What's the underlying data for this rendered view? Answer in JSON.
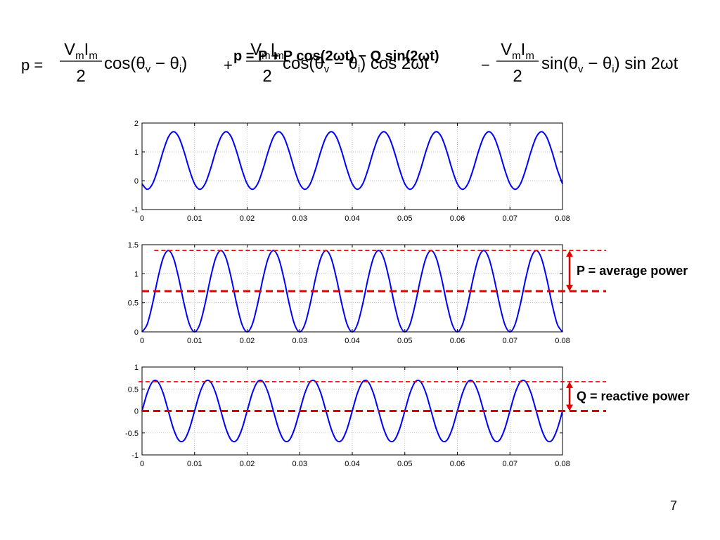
{
  "formula": {
    "lhs": "p =",
    "terms": [
      {
        "numerator": [
          [
            "V",
            "m"
          ],
          [
            "I",
            "m"
          ]
        ],
        "denominator": "2",
        "expression": [
          {
            "t": "cos(θ",
            "sub": "v"
          },
          {
            "t": " − θ",
            "sub": "i"
          },
          {
            "t": ")"
          }
        ]
      },
      {
        "sign": "+",
        "numerator": [
          [
            "V",
            "m"
          ],
          [
            "I",
            "m"
          ]
        ],
        "denominator": "2",
        "expression": [
          {
            "t": "cos(θ",
            "sub": "v"
          },
          {
            "t": " − θ",
            "sub": "i"
          },
          {
            "t": ") cos 2ωt"
          }
        ]
      },
      {
        "sign": "−",
        "numerator": [
          [
            "V",
            "m"
          ],
          [
            "I",
            "m"
          ]
        ],
        "denominator": "2",
        "expression": [
          {
            "t": "sin(θ",
            "sub": "v"
          },
          {
            "t": " − θ",
            "sub": "i"
          },
          {
            "t": ") sin 2ωt"
          }
        ]
      }
    ],
    "overlay": "p = P + P cos(2ωt) − Q sin(2ωt)"
  },
  "page_number": "7",
  "chart_data": [
    {
      "type": "line",
      "grid": true,
      "x": [
        0,
        0.001,
        0.002,
        0.003,
        0.004,
        0.005,
        0.006,
        0.007,
        0.008,
        0.009,
        0.01,
        0.011,
        0.012,
        0.013,
        0.014,
        0.015,
        0.016,
        0.017,
        0.018,
        0.019,
        0.02,
        0.021,
        0.022,
        0.023,
        0.024,
        0.025,
        0.026,
        0.027,
        0.028,
        0.029,
        0.03,
        0.031,
        0.032,
        0.033,
        0.034,
        0.035,
        0.036,
        0.037,
        0.038,
        0.039,
        0.04,
        0.041,
        0.042,
        0.043,
        0.044,
        0.045,
        0.046,
        0.047,
        0.048,
        0.049,
        0.05,
        0.051,
        0.052,
        0.053,
        0.054,
        0.055,
        0.056,
        0.057,
        0.058,
        0.059,
        0.06,
        0.061,
        0.062,
        0.063,
        0.064,
        0.065,
        0.066,
        0.067,
        0.068,
        0.069,
        0.07,
        0.071,
        0.072,
        0.073,
        0.074,
        0.075,
        0.076,
        0.077,
        0.078,
        0.079,
        0.08
      ],
      "series": [
        {
          "color": "#0000ff",
          "values": [
            -0.109,
            -0.3,
            -0.109,
            0.391,
            1.009,
            1.509,
            1.7,
            1.509,
            1.009,
            0.391,
            -0.109,
            -0.3,
            -0.109,
            0.391,
            1.009,
            1.509,
            1.7,
            1.509,
            1.009,
            0.391,
            -0.109,
            -0.3,
            -0.109,
            0.391,
            1.009,
            1.509,
            1.7,
            1.509,
            1.009,
            0.391,
            -0.109,
            -0.3,
            -0.109,
            0.391,
            1.009,
            1.509,
            1.7,
            1.509,
            1.009,
            0.391,
            -0.109,
            -0.3,
            -0.109,
            0.391,
            1.009,
            1.509,
            1.7,
            1.509,
            1.009,
            0.391,
            -0.109,
            -0.3,
            -0.109,
            0.391,
            1.009,
            1.509,
            1.7,
            1.509,
            1.009,
            0.391,
            -0.109,
            -0.3,
            -0.109,
            0.391,
            1.009,
            1.509,
            1.7,
            1.509,
            1.009,
            0.391,
            -0.109,
            -0.3,
            -0.109,
            0.391,
            1.009,
            1.509,
            1.7,
            1.509,
            1.009,
            0.391,
            -0.109
          ]
        }
      ],
      "xlim": [
        0,
        0.08
      ],
      "xticks": [
        0,
        0.01,
        0.02,
        0.03,
        0.04,
        0.05,
        0.06,
        0.07,
        0.08
      ],
      "ylim": [
        -1,
        2
      ],
      "yticks": [
        -1,
        0,
        1,
        2
      ]
    },
    {
      "type": "line",
      "grid": true,
      "x": [
        0,
        0.001,
        0.002,
        0.003,
        0.004,
        0.005,
        0.006,
        0.007,
        0.008,
        0.009,
        0.01,
        0.011,
        0.012,
        0.013,
        0.014,
        0.015,
        0.016,
        0.017,
        0.018,
        0.019,
        0.02,
        0.021,
        0.022,
        0.023,
        0.024,
        0.025,
        0.026,
        0.027,
        0.028,
        0.029,
        0.03,
        0.031,
        0.032,
        0.033,
        0.034,
        0.035,
        0.036,
        0.037,
        0.038,
        0.039,
        0.04,
        0.041,
        0.042,
        0.043,
        0.044,
        0.045,
        0.046,
        0.047,
        0.048,
        0.049,
        0.05,
        0.051,
        0.052,
        0.053,
        0.054,
        0.055,
        0.056,
        0.057,
        0.058,
        0.059,
        0.06,
        0.061,
        0.062,
        0.063,
        0.064,
        0.065,
        0.066,
        0.067,
        0.068,
        0.069,
        0.07,
        0.071,
        0.072,
        0.073,
        0.074,
        0.075,
        0.076,
        0.077,
        0.078,
        0.079,
        0.08
      ],
      "series": [
        {
          "color": "#0000ff",
          "values": [
            0,
            0.134,
            0.484,
            0.916,
            1.266,
            1.4,
            1.266,
            0.916,
            0.484,
            0.134,
            0,
            0.134,
            0.484,
            0.916,
            1.266,
            1.4,
            1.266,
            0.916,
            0.484,
            0.134,
            0,
            0.134,
            0.484,
            0.916,
            1.266,
            1.4,
            1.266,
            0.916,
            0.484,
            0.134,
            0,
            0.134,
            0.484,
            0.916,
            1.266,
            1.4,
            1.266,
            0.916,
            0.484,
            0.134,
            0,
            0.134,
            0.484,
            0.916,
            1.266,
            1.4,
            1.266,
            0.916,
            0.484,
            0.134,
            0,
            0.134,
            0.484,
            0.916,
            1.266,
            1.4,
            1.266,
            0.916,
            0.484,
            0.134,
            0,
            0.134,
            0.484,
            0.916,
            1.266,
            1.4,
            1.266,
            0.916,
            0.484,
            0.134,
            0,
            0.134,
            0.484,
            0.916,
            1.266,
            1.4,
            1.266,
            0.916,
            0.484,
            0.134,
            0
          ]
        }
      ],
      "xlim": [
        0,
        0.08
      ],
      "xticks": [
        0,
        0.01,
        0.02,
        0.03,
        0.04,
        0.05,
        0.06,
        0.07,
        0.08
      ],
      "ylim": [
        0,
        1.5
      ],
      "yticks": [
        0,
        0.5,
        1,
        1.5
      ],
      "reference_line": {
        "value": 0.7,
        "label": "P = average power",
        "color": "#e00000"
      }
    },
    {
      "type": "line",
      "grid": true,
      "x": [
        0,
        0.001,
        0.002,
        0.003,
        0.004,
        0.005,
        0.006,
        0.007,
        0.008,
        0.009,
        0.01,
        0.011,
        0.012,
        0.013,
        0.014,
        0.015,
        0.016,
        0.017,
        0.018,
        0.019,
        0.02,
        0.021,
        0.022,
        0.023,
        0.024,
        0.025,
        0.026,
        0.027,
        0.028,
        0.029,
        0.03,
        0.031,
        0.032,
        0.033,
        0.034,
        0.035,
        0.036,
        0.037,
        0.038,
        0.039,
        0.04,
        0.041,
        0.042,
        0.043,
        0.044,
        0.045,
        0.046,
        0.047,
        0.048,
        0.049,
        0.05,
        0.051,
        0.052,
        0.053,
        0.054,
        0.055,
        0.056,
        0.057,
        0.058,
        0.059,
        0.06,
        0.061,
        0.062,
        0.063,
        0.064,
        0.065,
        0.066,
        0.067,
        0.068,
        0.069,
        0.07,
        0.071,
        0.072,
        0.073,
        0.074,
        0.075,
        0.076,
        0.077,
        0.078,
        0.079,
        0.08
      ],
      "series": [
        {
          "color": "#0000ff",
          "values": [
            0,
            0.412,
            0.666,
            0.666,
            0.412,
            0,
            -0.412,
            -0.666,
            -0.666,
            -0.412,
            0,
            0.412,
            0.666,
            0.666,
            0.412,
            0,
            -0.412,
            -0.666,
            -0.666,
            -0.412,
            0,
            0.412,
            0.666,
            0.666,
            0.412,
            0,
            -0.412,
            -0.666,
            -0.666,
            -0.412,
            0,
            0.412,
            0.666,
            0.666,
            0.412,
            0,
            -0.412,
            -0.666,
            -0.666,
            -0.412,
            0,
            0.412,
            0.666,
            0.666,
            0.412,
            0,
            -0.412,
            -0.666,
            -0.666,
            -0.412,
            0,
            0.412,
            0.666,
            0.666,
            0.412,
            0,
            -0.412,
            -0.666,
            -0.666,
            -0.412,
            0,
            0.412,
            0.666,
            0.666,
            0.412,
            0,
            -0.412,
            -0.666,
            -0.666,
            -0.412,
            0,
            0.412,
            0.666,
            0.666,
            0.412,
            0,
            -0.412,
            -0.666,
            -0.666,
            -0.412,
            0
          ]
        }
      ],
      "xlim": [
        0,
        0.08
      ],
      "xticks": [
        0,
        0.01,
        0.02,
        0.03,
        0.04,
        0.05,
        0.06,
        0.07,
        0.08
      ],
      "ylim": [
        -1,
        1
      ],
      "yticks": [
        -1,
        -0.5,
        0,
        0.5,
        1
      ],
      "reference_line": {
        "value": 0,
        "label": "Q = reactive power",
        "color": "#e00000"
      }
    }
  ]
}
